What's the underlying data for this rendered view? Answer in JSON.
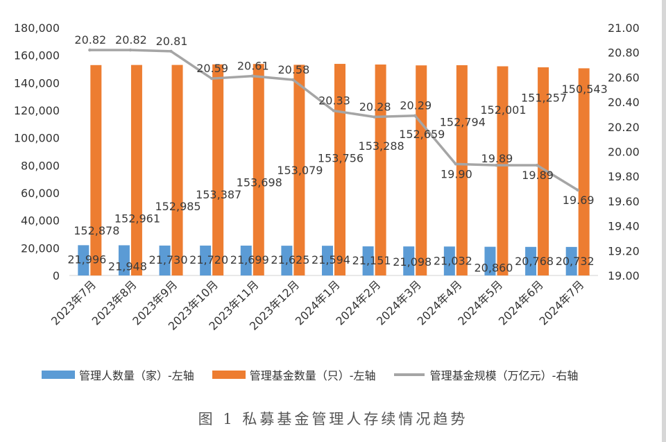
{
  "chart_data": {
    "type": "bar",
    "categories": [
      "2023年7月",
      "2023年8月",
      "2023年9月",
      "2023年10月",
      "2023年11月",
      "2023年12月",
      "2024年1月",
      "2024年2月",
      "2024年3月",
      "2024年4月",
      "2024年5月",
      "2024年6月",
      "2024年7月"
    ],
    "series": [
      {
        "name": "管理人数量（家）-左轴",
        "type": "bar",
        "axis": "left",
        "color": "#5b9bd5",
        "values": [
          21996,
          21948,
          21730,
          21720,
          21699,
          21625,
          21594,
          21151,
          21098,
          21032,
          20860,
          20768,
          20732
        ],
        "labels": [
          "21,996",
          "21,948",
          "21,730",
          "21,720",
          "21,699",
          "21,625",
          "21,594",
          "21,151",
          "21,098",
          "21,032",
          "20,860",
          "20,768",
          "20,732"
        ]
      },
      {
        "name": "管理基金数量（只）-左轴",
        "type": "bar",
        "axis": "left",
        "color": "#ed7d31",
        "values": [
          152878,
          152961,
          152985,
          153387,
          153698,
          153079,
          153756,
          153288,
          152659,
          152794,
          152001,
          151257,
          150543
        ],
        "labels": [
          "152,878",
          "152,961",
          "152,985",
          "153,387",
          "153,698",
          "153,079",
          "153,756",
          "153,288",
          "152,659",
          "152,794",
          "152,001",
          "151,257",
          "150,543"
        ]
      },
      {
        "name": "管理基金规模（万亿元）-右轴",
        "type": "line",
        "axis": "right",
        "color": "#a5a5a5",
        "values": [
          20.82,
          20.82,
          20.81,
          20.59,
          20.61,
          20.58,
          20.33,
          20.28,
          20.29,
          19.9,
          19.89,
          19.89,
          19.69
        ],
        "labels": [
          "20.82",
          "20.82",
          "20.81",
          "20.59",
          "20.61",
          "20.58",
          "20.33",
          "20.28",
          "20.29",
          "19.90",
          "19.89",
          "19.89",
          "19.69"
        ]
      }
    ],
    "y_left": {
      "ylim": [
        0,
        180000
      ],
      "ticks": [
        0,
        20000,
        40000,
        60000,
        80000,
        100000,
        120000,
        140000,
        160000,
        180000
      ],
      "tick_labels": [
        "0",
        "20,000",
        "40,000",
        "60,000",
        "80,000",
        "100,000",
        "120,000",
        "140,000",
        "160,000",
        "180,000"
      ]
    },
    "y_right": {
      "ylim": [
        19.0,
        21.0
      ],
      "ticks": [
        19.0,
        19.2,
        19.4,
        19.6,
        19.8,
        20.0,
        20.2,
        20.4,
        20.6,
        20.8,
        21.0
      ],
      "tick_labels": [
        "19.00",
        "19.20",
        "19.40",
        "19.60",
        "19.80",
        "20.00",
        "20.20",
        "20.40",
        "20.60",
        "20.80",
        "21.00"
      ]
    },
    "legend_position": "bottom",
    "grid": false,
    "caption": "图 1  私募基金管理人存续情况趋势"
  }
}
